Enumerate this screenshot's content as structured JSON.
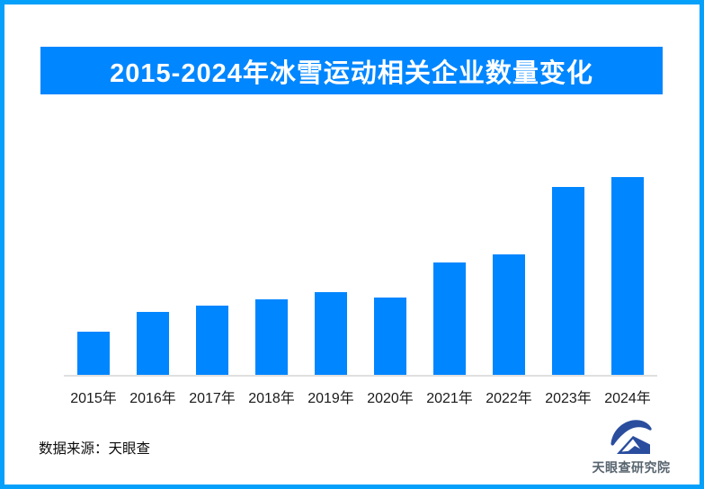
{
  "page": {
    "border_color": "#05a0fa",
    "background_color": "#ffffff"
  },
  "header": {
    "title": "2015-2024年冰雪运动相关企业数量变化",
    "banner_color": "#0086ff",
    "title_color": "#ffffff"
  },
  "chart_data": {
    "type": "bar",
    "title": "2015-2024年冰雪运动相关企业数量变化",
    "categories": [
      "2015年",
      "2016年",
      "2017年",
      "2018年",
      "2019年",
      "2020年",
      "2021年",
      "2022年",
      "2023年",
      "2024年"
    ],
    "values": [
      22,
      32,
      35,
      38,
      42,
      39,
      57,
      61,
      95,
      100
    ],
    "values_note": "no y-axis or data labels shown; values estimated from bar heights, tallest bar (2024) = 100",
    "xlabel": "",
    "ylabel": "",
    "ylim": [
      0,
      100
    ],
    "bar_color": "#0086ff",
    "axis_line_color": "#e0e0e0",
    "tick_label_color": "#1a1a1a",
    "y_axis_visible": false,
    "gridlines": false,
    "legend": false
  },
  "footer": {
    "source_label": "数据来源：天眼查",
    "logo": {
      "icon": "tianyancha-eye-house-logo",
      "text": "天眼查研究院",
      "icon_color": "#2a4d9e",
      "text_color": "#57646e"
    }
  }
}
